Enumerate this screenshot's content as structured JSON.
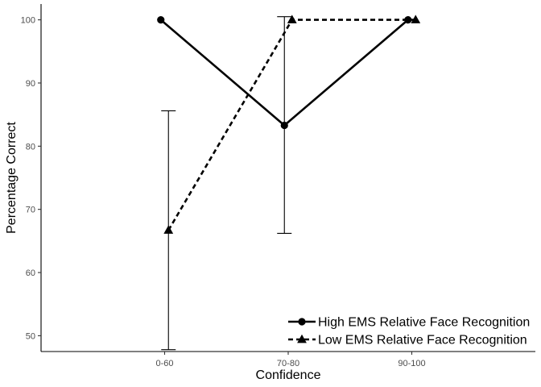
{
  "chart_data": {
    "type": "line",
    "title": "",
    "xlabel": "Confidence",
    "ylabel": "Percentage Correct",
    "categories": [
      "0-60",
      "70-80",
      "90-100"
    ],
    "ylim": [
      47.5,
      102.5
    ],
    "yticks": [
      50,
      60,
      70,
      80,
      90,
      100
    ],
    "grid": false,
    "legend_position": "bottom-right",
    "series": [
      {
        "name": "High EMS Relative Face Recognition",
        "values": [
          100,
          83.3,
          100
        ],
        "error_low": [
          null,
          66.2,
          null
        ],
        "error_high": [
          null,
          100.5,
          null
        ],
        "marker": "circle",
        "line_style": "solid",
        "color": "#000000"
      },
      {
        "name": "Low EMS Relative Face Recognition",
        "values": [
          66.7,
          100,
          100
        ],
        "error_low": [
          47.8,
          null,
          null
        ],
        "error_high": [
          85.6,
          null,
          null
        ],
        "marker": "triangle",
        "line_style": "dashed",
        "color": "#000000"
      }
    ]
  }
}
